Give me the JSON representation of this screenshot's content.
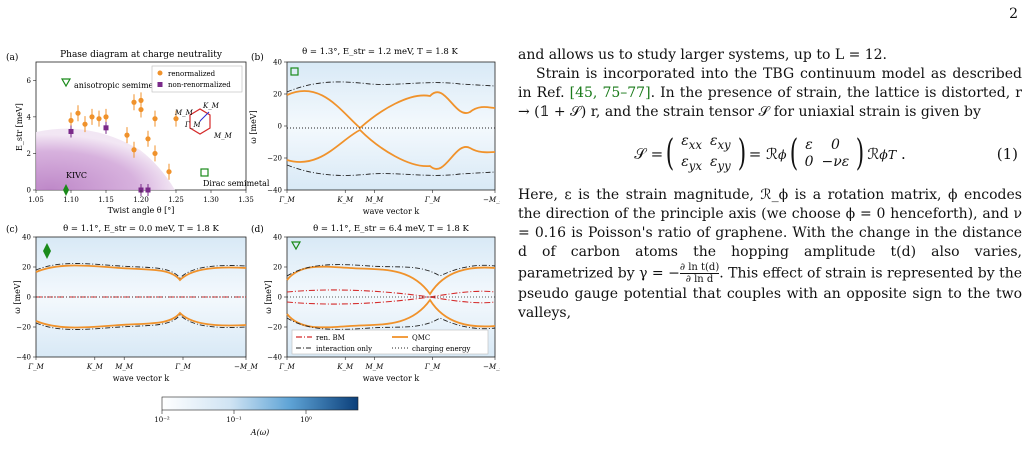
{
  "page": {
    "number": "2"
  },
  "figure": {
    "panels": {
      "a": {
        "label": "(a)",
        "title": "Phase diagram at charge neutrality",
        "xlabel": "Twist angle θ [°]",
        "ylabel": "E_str [meV]",
        "xticks": [
          "1.05",
          "1.10",
          "1.15",
          "1.20",
          "1.25",
          "1.30",
          "1.35"
        ],
        "yticks": [
          "0",
          "2",
          "4",
          "6"
        ],
        "legend": [
          "renormalized",
          "non-renormalized"
        ],
        "region_labels": [
          "anisotropic semimetal",
          "KIVC",
          "Dirac semimetal"
        ],
        "bz_labels": [
          "M_M",
          "K_M",
          "Γ_M",
          "M_M"
        ]
      },
      "b": {
        "label": "(b)",
        "title": "θ = 1.3°, E_str = 1.2 meV, T = 1.8 K"
      },
      "c": {
        "label": "(c)",
        "title": "θ = 1.1°, E_str = 0.0 meV, T = 1.8 K"
      },
      "d": {
        "label": "(d)",
        "title": "θ = 1.1°, E_str = 6.4 meV, T = 1.8 K"
      },
      "common": {
        "ylabel": "ω [meV]",
        "xlabel": "wave vector k",
        "yticks": [
          "40",
          "20",
          "0",
          "−20",
          "−40"
        ],
        "xticks": [
          "Γ_M",
          "K_M",
          "M_M",
          "Γ_M",
          "−M_M"
        ]
      },
      "legend_d": [
        "ren. BM",
        "QMC",
        "interaction only",
        "charging energy"
      ],
      "colorbar": {
        "label": "A(ω)",
        "ticks": [
          "10⁻²",
          "10⁻¹",
          "10⁰"
        ]
      }
    }
  },
  "chart_data": [
    {
      "type": "scatter",
      "title": "Phase diagram at charge neutrality",
      "xlabel": "Twist angle θ [°]",
      "ylabel": "E_str [meV]",
      "xlim": [
        1.05,
        1.35
      ],
      "ylim": [
        0,
        7
      ],
      "series": [
        {
          "name": "renormalized",
          "color": "#f0922b",
          "points": [
            [
              1.1,
              3.8
            ],
            [
              1.11,
              4.2
            ],
            [
              1.12,
              3.6
            ],
            [
              1.13,
              4.0
            ],
            [
              1.14,
              3.9
            ],
            [
              1.15,
              4.0
            ],
            [
              1.18,
              3.0
            ],
            [
              1.19,
              4.8
            ],
            [
              1.2,
              4.9
            ],
            [
              1.2,
              4.4
            ],
            [
              1.21,
              2.8
            ],
            [
              1.22,
              3.9
            ],
            [
              1.25,
              3.9
            ],
            [
              1.19,
              2.2
            ],
            [
              1.22,
              2.0
            ],
            [
              1.24,
              1.0
            ]
          ]
        },
        {
          "name": "non-renormalized",
          "color": "#7a2a8a",
          "points": [
            [
              1.1,
              3.2
            ],
            [
              1.15,
              3.4
            ],
            [
              1.2,
              0.0
            ],
            [
              1.21,
              0.0
            ]
          ]
        }
      ]
    }
  ],
  "text": {
    "p1": "and allows us to study larger systems, up to L = 12.",
    "p2a": "Strain is incorporated into the TBG continuum model as described in Ref. ",
    "p2cite": "[45, 75–77]",
    "p2b": ". In the presence of strain, the lattice is distorted, r → (𝟙 + 𝒮) r, and the strain tensor 𝒮 for uniaxial strain is given by",
    "eq_lhs": "𝒮 =",
    "eq_mid": "= ℛ",
    "eq_rhs": "ℛ",
    "eq_num": "(1)",
    "p3": "Here, ε is the strain magnitude, ℛ_ϕ is a rotation matrix, ϕ encodes the direction of the principle axis (we choose ϕ = 0 henceforth), and ν = 0.16 is Poisson's ratio of graphene. With the change in the distance d of carbon atoms the hopping amplitude t(d) also varies, parametrized by γ = −",
    "p3_frac_num": "∂ ln t(d)",
    "p3_frac_den": "∂ ln d",
    "p3b": ". This effect of strain is represented by the pseudo gauge potential that couples with an opposite sign to the two valleys,"
  }
}
